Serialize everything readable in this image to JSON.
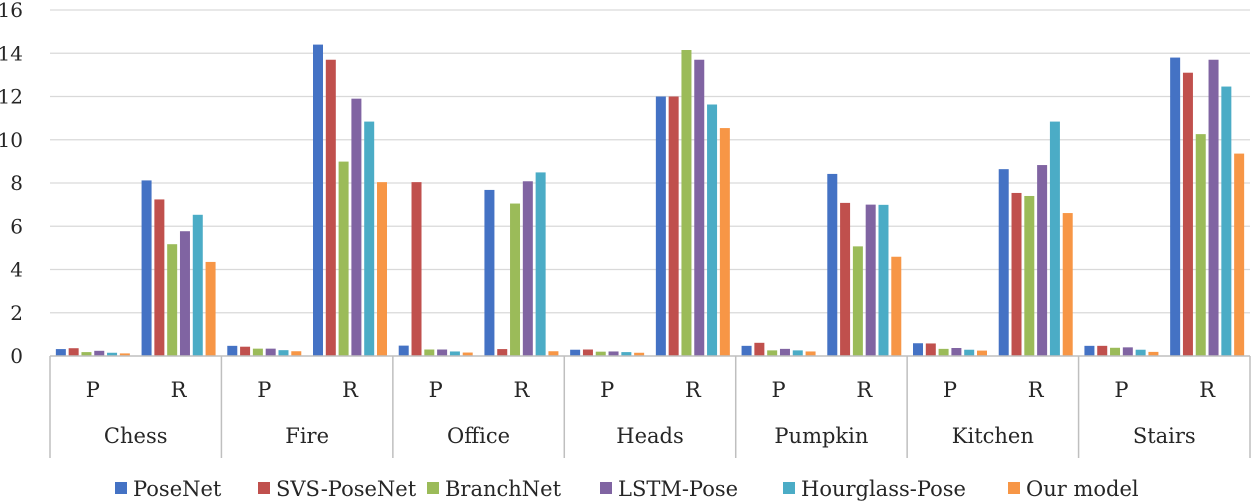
{
  "chart_data": {
    "type": "bar",
    "groups": [
      "Chess",
      "Fire",
      "Office",
      "Heads",
      "Pumpkin",
      "Kitchen",
      "Stairs"
    ],
    "subcategories": [
      "P",
      "R"
    ],
    "ylim": [
      0,
      16
    ],
    "yticks": [
      0,
      2,
      4,
      6,
      8,
      10,
      12,
      14,
      16
    ],
    "grid": true,
    "legend_position": "bottom",
    "series": [
      {
        "name": "PoseNet",
        "color": "#4472C4",
        "values": [
          0.32,
          8.12,
          0.47,
          14.4,
          0.48,
          7.68,
          0.29,
          12.0,
          0.47,
          8.42,
          0.59,
          8.64,
          0.47,
          13.8
        ]
      },
      {
        "name": "SVS-PoseNet",
        "color": "#C0504D",
        "values": [
          0.36,
          7.24,
          0.43,
          13.7,
          8.04,
          0.32,
          0.3,
          12.0,
          0.61,
          7.08,
          0.58,
          7.54,
          0.47,
          13.1
        ]
      },
      {
        "name": "BranchNet",
        "color": "#9BBB59",
        "values": [
          0.18,
          5.17,
          0.34,
          8.99,
          0.3,
          7.05,
          0.2,
          14.15,
          0.26,
          5.07,
          0.33,
          7.4,
          0.38,
          10.26
        ]
      },
      {
        "name": "LSTM-Pose",
        "color": "#8064A2",
        "values": [
          0.24,
          5.77,
          0.34,
          11.9,
          0.3,
          8.08,
          0.21,
          13.7,
          0.33,
          7.0,
          0.37,
          8.83,
          0.4,
          13.7
        ]
      },
      {
        "name": "Hourglass-Pose",
        "color": "#4BACC6",
        "values": [
          0.15,
          6.53,
          0.27,
          10.84,
          0.21,
          8.49,
          0.18,
          11.63,
          0.26,
          6.99,
          0.29,
          10.84,
          0.29,
          12.46
        ]
      },
      {
        "name": "Our model",
        "color": "#F79646",
        "values": [
          0.12,
          4.35,
          0.22,
          8.04,
          0.16,
          0.22,
          0.15,
          10.54,
          0.21,
          4.59,
          0.25,
          6.61,
          0.19,
          9.36
        ]
      }
    ]
  }
}
